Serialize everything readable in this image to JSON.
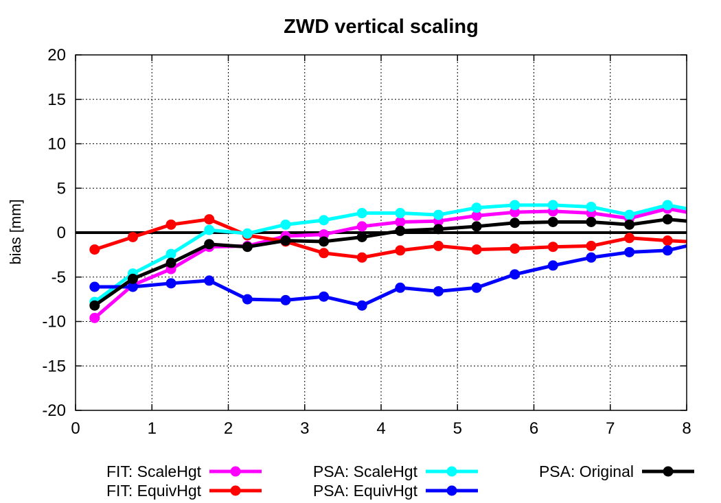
{
  "chart_data": {
    "type": "line",
    "title": "ZWD vertical scaling",
    "xlabel": "",
    "ylabel": "bias [mm]",
    "xlim": [
      0,
      8
    ],
    "ylim": [
      -20,
      20
    ],
    "xticks": [
      0,
      1,
      2,
      3,
      4,
      5,
      6,
      7,
      8
    ],
    "yticks": [
      -20,
      -15,
      -10,
      -5,
      0,
      5,
      10,
      15,
      20
    ],
    "grid": true,
    "legend_position": "bottom",
    "x": [
      0.25,
      0.75,
      1.25,
      1.75,
      2.25,
      2.75,
      3.25,
      3.75,
      4.25,
      4.75,
      5.25,
      5.75,
      6.25,
      6.75,
      7.25,
      7.75,
      8.0
    ],
    "series": [
      {
        "name": "FIT: ScaleHgt",
        "color": "#ff00ff",
        "values": [
          -9.6,
          -5.9,
          -4.1,
          -1.6,
          -1.5,
          -0.4,
          -0.2,
          0.7,
          1.2,
          1.3,
          1.9,
          2.3,
          2.4,
          2.2,
          1.6,
          2.7,
          2.3
        ]
      },
      {
        "name": "FIT: EquivHgt",
        "color": "#ff0000",
        "values": [
          -1.9,
          -0.5,
          0.9,
          1.5,
          -0.3,
          -1.0,
          -2.3,
          -2.8,
          -2.0,
          -1.5,
          -1.9,
          -1.8,
          -1.6,
          -1.5,
          -0.6,
          -0.9,
          -1.0
        ]
      },
      {
        "name": "PSA: ScaleHgt",
        "color": "#00ffff",
        "values": [
          -7.8,
          -4.6,
          -2.4,
          0.3,
          -0.1,
          0.9,
          1.4,
          2.2,
          2.2,
          2.0,
          2.8,
          3.1,
          3.1,
          2.9,
          2.0,
          3.1,
          2.7
        ]
      },
      {
        "name": "PSA: EquivHgt",
        "color": "#0000ff",
        "values": [
          -6.1,
          -6.1,
          -5.7,
          -5.4,
          -7.5,
          -7.6,
          -7.2,
          -8.2,
          -6.2,
          -6.6,
          -6.2,
          -4.7,
          -3.7,
          -2.8,
          -2.2,
          -2.0,
          -1.5
        ]
      },
      {
        "name": "PSA: Original",
        "color": "#000000",
        "values": [
          -8.2,
          -5.2,
          -3.4,
          -1.3,
          -1.6,
          -0.9,
          -1.0,
          -0.5,
          0.2,
          0.4,
          0.7,
          1.1,
          1.2,
          1.2,
          0.9,
          1.5,
          1.3
        ]
      }
    ]
  }
}
